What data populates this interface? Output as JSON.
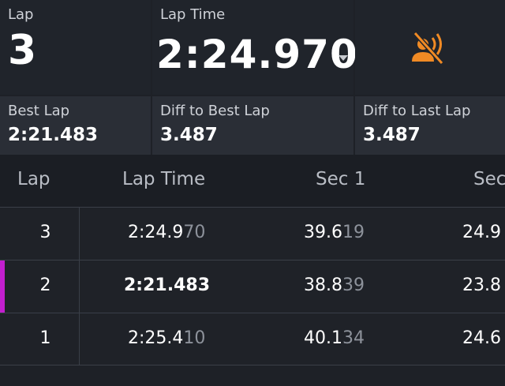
{
  "summary": {
    "lap": {
      "label": "Lap",
      "value": "3"
    },
    "lap_time": {
      "label": "Lap Time",
      "value": "2:24.970"
    },
    "best_lap": {
      "label": "Best Lap",
      "value": "2:21.483"
    },
    "diff_best": {
      "label": "Diff to Best Lap",
      "value": "3.487"
    },
    "diff_last": {
      "label": "Diff to Last Lap",
      "value": "3.487"
    },
    "voice_icon": "voice-muted-icon",
    "accent_color": "#f08a24",
    "best_color": "#c12fc8"
  },
  "table": {
    "headers": {
      "lap": "Lap",
      "lap_time": "Lap Time",
      "sec1": "Sec 1",
      "sec2": "Sec"
    },
    "rows": [
      {
        "lap": "3",
        "time_main": "2:24.9",
        "time_dim": "70",
        "sec1_main": "39.6",
        "sec1_dim": "19",
        "sec2_main": "24.9",
        "sec2_dim": "",
        "best": false
      },
      {
        "lap": "2",
        "time_main": "2:21.483",
        "time_dim": "",
        "sec1_main": "38.8",
        "sec1_dim": "39",
        "sec2_main": "23.8",
        "sec2_dim": "",
        "best": true
      },
      {
        "lap": "1",
        "time_main": "2:25.4",
        "time_dim": "10",
        "sec1_main": "40.1",
        "sec1_dim": "34",
        "sec2_main": "24.6",
        "sec2_dim": "",
        "best": false
      }
    ]
  }
}
